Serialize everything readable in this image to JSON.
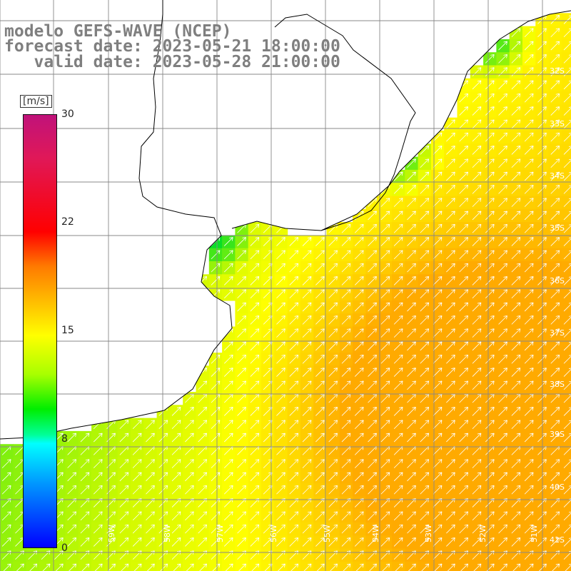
{
  "title": {
    "line1": "modelo GEFS-WAVE (NCEP)",
    "line2": "forecast date: 2023-05-21 18:00:00",
    "line3": "   valid date: 2023-05-28 21:00:00"
  },
  "colorbar": {
    "unit": "[m/s]",
    "ticks": [
      "30",
      "22",
      "15",
      "8",
      "0"
    ],
    "min": 0,
    "max": 30,
    "colors": [
      "#0000ff",
      "#00ffff",
      "#00ee00",
      "#ffff00",
      "#ff7a00",
      "#ff0000",
      "#c0127a"
    ]
  },
  "lat_labels": [
    "32S",
    "33S",
    "34S",
    "35S",
    "36S",
    "37S",
    "38S",
    "39S",
    "40S",
    "41S"
  ],
  "lon_labels": [
    "59W",
    "58W",
    "57W",
    "56W",
    "55W",
    "54W",
    "53W",
    "52W",
    "51W"
  ],
  "map": {
    "lon_range": [
      -60,
      -50.8
    ],
    "lat_range": [
      -41.3,
      -31
    ],
    "ocean_colors": [
      "#00ff66",
      "#55ee22",
      "#aaff00",
      "#ddff00",
      "#ffff00",
      "#ffcc00",
      "#ffaa00"
    ],
    "coast_color": "#000000",
    "grid_color": "#888888",
    "arrow_color": "#ffffff"
  }
}
